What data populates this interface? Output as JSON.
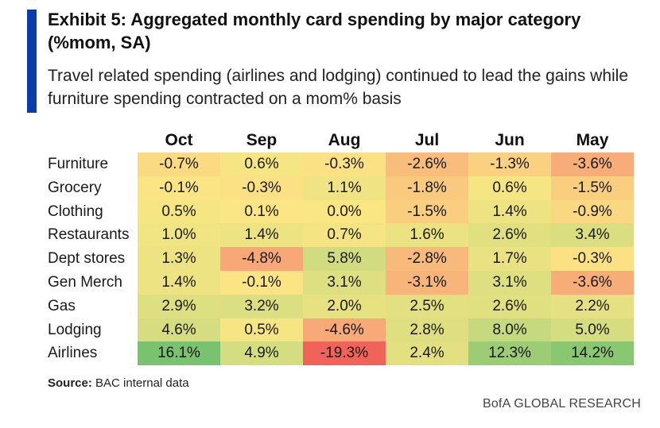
{
  "header": {
    "title": "Exhibit 5: Aggregated monthly card spending by major category (%mom, SA)",
    "subtitle": "Travel related spending (airlines and lodging) continued to lead the gains while furniture spending contracted on a mom% basis"
  },
  "chart_data": {
    "type": "heatmap",
    "title": "Exhibit 5: Aggregated monthly card spending by major category (%mom, SA)",
    "columns": [
      "Oct",
      "Sep",
      "Aug",
      "Jul",
      "Jun",
      "May"
    ],
    "rows": [
      "Furniture",
      "Grocery",
      "Clothing",
      "Restaurants",
      "Dept stores",
      "Gen Merch",
      "Gas",
      "Lodging",
      "Airlines"
    ],
    "values": [
      [
        -0.7,
        0.6,
        -0.3,
        -2.6,
        -1.3,
        -3.6
      ],
      [
        -0.1,
        -0.3,
        1.1,
        -1.8,
        0.6,
        -1.5
      ],
      [
        0.5,
        0.1,
        0.0,
        -1.5,
        1.4,
        -0.9
      ],
      [
        1.0,
        1.4,
        0.7,
        1.6,
        2.6,
        3.4
      ],
      [
        1.3,
        -4.8,
        5.8,
        -2.8,
        1.7,
        -0.3
      ],
      [
        1.4,
        -0.1,
        3.1,
        -3.1,
        3.1,
        -3.6
      ],
      [
        2.9,
        3.2,
        2.0,
        2.5,
        2.6,
        2.2
      ],
      [
        4.6,
        0.5,
        -4.6,
        2.8,
        8.0,
        5.0
      ],
      [
        16.1,
        4.9,
        -19.3,
        2.4,
        12.3,
        14.2
      ]
    ],
    "labels": [
      [
        "-0.7%",
        "0.6%",
        "-0.3%",
        "-2.6%",
        "-1.3%",
        "-3.6%"
      ],
      [
        "-0.1%",
        "-0.3%",
        "1.1%",
        "-1.8%",
        "0.6%",
        "-1.5%"
      ],
      [
        "0.5%",
        "0.1%",
        "0.0%",
        "-1.5%",
        "1.4%",
        "-0.9%"
      ],
      [
        "1.0%",
        "1.4%",
        "0.7%",
        "1.6%",
        "2.6%",
        "3.4%"
      ],
      [
        "1.3%",
        "-4.8%",
        "5.8%",
        "-2.8%",
        "1.7%",
        "-0.3%"
      ],
      [
        "1.4%",
        "-0.1%",
        "3.1%",
        "-3.1%",
        "3.1%",
        "-3.6%"
      ],
      [
        "2.9%",
        "3.2%",
        "2.0%",
        "2.5%",
        "2.6%",
        "2.2%"
      ],
      [
        "4.6%",
        "0.5%",
        "-4.6%",
        "2.8%",
        "8.0%",
        "5.0%"
      ],
      [
        "16.1%",
        "4.9%",
        "-19.3%",
        "2.4%",
        "12.3%",
        "14.2%"
      ]
    ],
    "color_scale": {
      "negative_strong": "#f0635a",
      "negative": "#f7ad78",
      "neutral": "#fbe684",
      "positive": "#c5d97e",
      "positive_strong": "#79c26f"
    }
  },
  "footer": {
    "source_label": "Source:",
    "source_text": "BAC internal data",
    "brand": "BofA GLOBAL RESEARCH"
  },
  "colors": {
    "accent": "#0a3ba8"
  }
}
